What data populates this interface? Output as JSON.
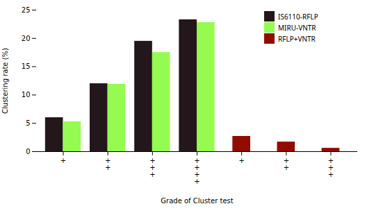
{
  "chart_data": {
    "type": "bar",
    "xlabel": "Grade of Cluster test",
    "ylabel": "Clustering rate (%)",
    "categories": [
      "+",
      "+\n+",
      "+\n+\n+",
      "+\n+\n+\n+",
      "+",
      "+\n+",
      "+\n+\n+"
    ],
    "series": [
      {
        "name": "IS6110-RFLP",
        "values": [
          6.0,
          12.0,
          19.5,
          23.3,
          null,
          null,
          null
        ]
      },
      {
        "name": "MIRU-VNTR",
        "values": [
          5.3,
          11.9,
          17.5,
          22.8,
          null,
          null,
          null
        ]
      },
      {
        "name": "RFLP+VNTR",
        "values": [
          null,
          null,
          null,
          null,
          2.7,
          1.7,
          0.6
        ]
      }
    ],
    "ylim": [
      0,
      25
    ],
    "yticks": [
      0,
      5,
      10,
      15,
      20,
      25
    ],
    "grid": false,
    "legend": "upper right"
  }
}
